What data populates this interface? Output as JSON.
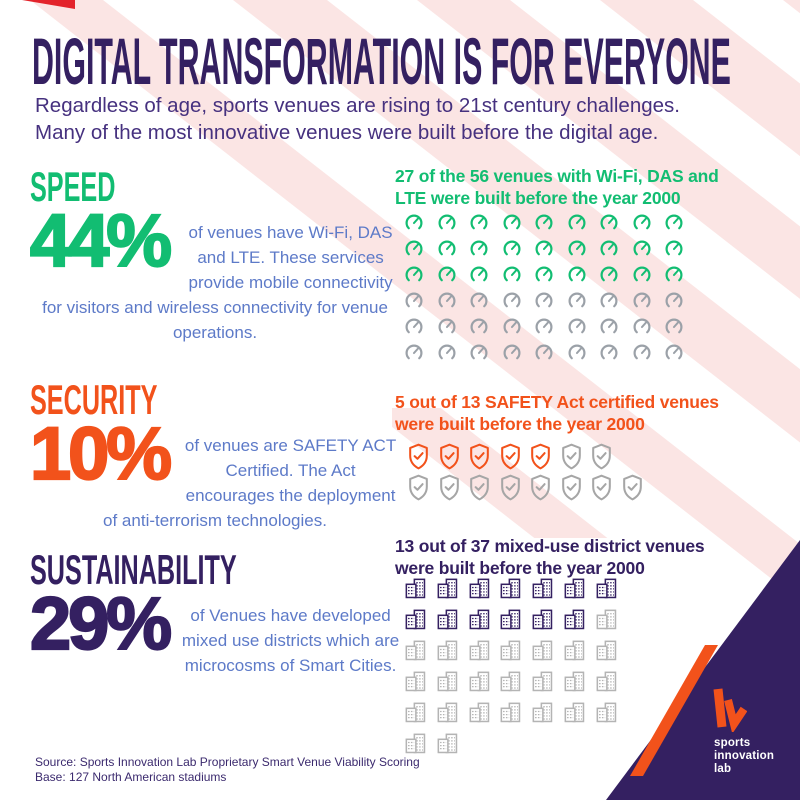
{
  "page": {
    "title": "DIGITAL TRANSFORMATION IS FOR EVERYONE",
    "subtitle_line1": "Regardless of age, sports venues are rising to 21st century challenges.",
    "subtitle_line2": "Many of the most innovative venues were built before the digital age."
  },
  "colors": {
    "background": "#ffffff",
    "stripe_pink": "#fbe5e4",
    "red_accent": "#e3232b",
    "title_purple": "#342061",
    "body_blue": "#5d7ac8",
    "green": "#12bd72",
    "orange": "#f2521b",
    "corner_purple": "#342061",
    "gray_gauge": "#9ba1a8",
    "gray_shield": "#a6a6a6",
    "gray_building": "#b4b4b4"
  },
  "sections": [
    {
      "heading": "SPEED",
      "percent": "44%",
      "description": "of venues have Wi-Fi, DAS and LTE. These services provide mobile connectivity for visitors and wireless connectivity for venue operations.",
      "caption": "27 of the 56 venues with Wi-Fi, DAS and LTE were built before the year 2000"
    },
    {
      "heading": "SECURITY",
      "percent": "10%",
      "description": "of venues are SAFETY ACT Certified. The Act encourages the deployment of anti-terrorism technologies.",
      "caption": "5 out of 13 SAFETY Act certified venues were built before the year 2000"
    },
    {
      "heading": "SUSTAINABILITY",
      "percent": "29%",
      "description": "of Venues have developed mixed use districts which are microcosms of Smart Cities.",
      "caption": "13 out of 37 mixed-use district venues were built before the year 2000"
    }
  ],
  "grids": {
    "speed": {
      "icon": "gauge",
      "rows": [
        [
          9,
          9
        ],
        [
          9,
          9
        ],
        [
          9,
          9
        ],
        [
          9,
          0
        ],
        [
          9,
          0
        ],
        [
          9,
          0
        ]
      ],
      "filled_color": "#12bd72",
      "empty_color": "#9ba1a8"
    },
    "security": {
      "icon": "shield",
      "rows": [
        [
          7,
          5
        ],
        [
          8,
          0
        ]
      ],
      "filled_color": "#f2521b",
      "empty_color": "#a6a6a6"
    },
    "sustainability": {
      "icon": "building",
      "rows": [
        [
          7,
          7
        ],
        [
          7,
          6
        ],
        [
          7,
          0
        ],
        [
          7,
          0
        ],
        [
          7,
          0
        ],
        [
          2,
          0
        ]
      ],
      "filled_color": "#342061",
      "empty_color": "#b4b4b4"
    }
  },
  "footer": {
    "source": "Source: Sports Innovation Lab Proprietary Smart Venue Viability Scoring",
    "base": "Base: 127 North American stadiums"
  },
  "logo": {
    "line1": "sports",
    "line2": "innovation",
    "line3": "lab"
  }
}
